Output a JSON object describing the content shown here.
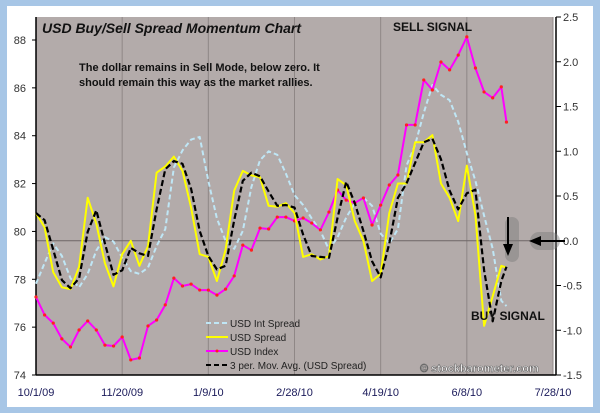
{
  "chart_data": {
    "type": "line",
    "title": "USD Buy/Sell Spread Momentum Chart",
    "annotation_lines": [
      "The dollar remains in Sell Mode, below zero.  It",
      "should remain this way as the market rallies."
    ],
    "sell_signal_label": "SELL SIGNAL",
    "buy_signal_label": "BUY SIGNAL",
    "watermark": "© stockbarometer.com",
    "x_tick_labels": [
      "10/1/09",
      "11/20/09",
      "1/9/10",
      "2/28/10",
      "4/19/10",
      "6/8/10",
      "7/28/10"
    ],
    "x_ticks": [
      "2009-10-01",
      "2009-11-20",
      "2010-01-09",
      "2010-02-28",
      "2010-04-19",
      "2010-06-08",
      "2010-07-28"
    ],
    "xlim": [
      "2009-10-01",
      "2010-07-28"
    ],
    "left_ylim": [
      74,
      88
    ],
    "left_ticks": [
      "74",
      "76",
      "78",
      "80",
      "82",
      "84",
      "86",
      "88"
    ],
    "right_ylim": [
      -1.5,
      2.5
    ],
    "right_ticks": [
      "2.5",
      "2.0",
      "1.5",
      "1.0",
      "0.5",
      "0.0",
      "-0.5",
      "-1.0",
      "-1.5"
    ],
    "grid": "vertical at date ticks, horizontal zero line on right axis",
    "legend_position": "bottom-center",
    "background_color": "#b3abaa",
    "x": [
      "2009-10-01",
      "2009-10-06",
      "2009-10-11",
      "2009-10-16",
      "2009-10-21",
      "2009-10-26",
      "2009-10-31",
      "2009-11-05",
      "2009-11-10",
      "2009-11-15",
      "2009-11-20",
      "2009-11-25",
      "2009-11-30",
      "2009-12-05",
      "2009-12-10",
      "2009-12-15",
      "2009-12-20",
      "2009-12-25",
      "2009-12-30",
      "2010-01-04",
      "2010-01-09",
      "2010-01-14",
      "2010-01-19",
      "2010-01-24",
      "2010-01-29",
      "2010-02-03",
      "2010-02-08",
      "2010-02-13",
      "2010-02-18",
      "2010-02-23",
      "2010-02-28",
      "2010-03-05",
      "2010-03-10",
      "2010-03-15",
      "2010-03-20",
      "2010-03-25",
      "2010-03-30",
      "2010-04-04",
      "2010-04-09",
      "2010-04-14",
      "2010-04-19",
      "2010-04-24",
      "2010-04-29",
      "2010-05-04",
      "2010-05-09",
      "2010-05-14",
      "2010-05-19",
      "2010-05-24",
      "2010-05-29",
      "2010-06-03",
      "2010-06-08",
      "2010-06-13",
      "2010-06-18",
      "2010-06-23",
      "2010-06-28",
      "2010-07-01"
    ],
    "series": [
      {
        "name": "USD Int Spread",
        "axis": "right",
        "color": "#bfe6f5",
        "style": "dashed",
        "values": [
          -0.48,
          -0.25,
          -0.03,
          -0.17,
          -0.42,
          -0.52,
          -0.37,
          -0.11,
          0.04,
          -0.01,
          -0.19,
          -0.34,
          -0.37,
          -0.3,
          -0.06,
          0.13,
          0.82,
          1.01,
          1.13,
          1.16,
          0.67,
          0.25,
          0.0,
          -0.09,
          0.11,
          0.6,
          0.9,
          1.0,
          0.96,
          0.75,
          0.51,
          0.4,
          0.25,
          0.11,
          -0.1,
          0.04,
          0.26,
          0.42,
          0.48,
          0.39,
          0.08,
          -0.03,
          0.13,
          0.84,
          1.07,
          1.43,
          1.74,
          1.63,
          1.57,
          1.33,
          0.98,
          0.67,
          0.28,
          -0.09,
          -0.67,
          -0.73
        ]
      },
      {
        "name": "USD Spread",
        "axis": "right",
        "color": "#ffff00",
        "style": "solid",
        "values": [
          0.31,
          0.15,
          -0.35,
          -0.52,
          -0.54,
          -0.29,
          0.48,
          0.19,
          -0.25,
          -0.51,
          -0.15,
          0.0,
          -0.28,
          -0.06,
          0.76,
          0.83,
          0.94,
          0.78,
          0.37,
          -0.15,
          -0.18,
          -0.45,
          -0.1,
          0.56,
          0.78,
          0.73,
          0.71,
          0.39,
          0.38,
          0.42,
          0.31,
          -0.18,
          -0.15,
          -0.21,
          -0.17,
          0.69,
          0.62,
          0.22,
          0.0,
          -0.45,
          -0.37,
          0.31,
          0.64,
          0.64,
          1.1,
          1.1,
          1.18,
          0.64,
          0.48,
          0.22,
          0.84,
          0.29,
          -0.95,
          -0.62,
          -0.28,
          -0.3
        ]
      },
      {
        "name": "USD Index",
        "axis": "left",
        "color": "#ff00ff",
        "style": "solid-markers",
        "marker_color": "#ff2020",
        "values": [
          77.26,
          76.51,
          76.17,
          75.51,
          75.17,
          75.88,
          76.26,
          75.88,
          75.25,
          75.21,
          75.59,
          74.63,
          74.71,
          76.05,
          76.3,
          76.93,
          78.05,
          77.72,
          77.8,
          77.55,
          77.55,
          77.34,
          77.59,
          78.14,
          79.43,
          79.22,
          80.14,
          80.1,
          80.6,
          80.6,
          80.44,
          80.56,
          80.35,
          80.06,
          80.81,
          81.73,
          81.31,
          81.19,
          81.4,
          80.27,
          81.1,
          81.94,
          82.36,
          84.45,
          84.45,
          86.33,
          85.91,
          87.08,
          86.75,
          87.37,
          88.13,
          86.83,
          85.83,
          85.58,
          86.04,
          84.57
        ]
      },
      {
        "name": "3 per. Mov. Avg. (USD Spread)",
        "axis": "right",
        "color": "#000000",
        "style": "dashed",
        "values": [
          0.31,
          0.23,
          -0.1,
          -0.44,
          -0.53,
          -0.42,
          0.1,
          0.34,
          -0.03,
          -0.38,
          -0.33,
          -0.08,
          -0.14,
          -0.17,
          0.35,
          0.8,
          0.89,
          0.86,
          0.58,
          0.11,
          -0.17,
          -0.32,
          -0.28,
          0.23,
          0.67,
          0.76,
          0.72,
          0.55,
          0.39,
          0.4,
          0.37,
          0.07,
          -0.17,
          -0.18,
          -0.19,
          0.26,
          0.66,
          0.42,
          0.11,
          -0.23,
          -0.41,
          -0.03,
          0.48,
          0.64,
          0.87,
          1.1,
          1.14,
          0.91,
          0.56,
          0.35,
          0.53,
          0.57,
          -0.33,
          -0.9,
          -0.45,
          -0.29
        ]
      }
    ]
  }
}
